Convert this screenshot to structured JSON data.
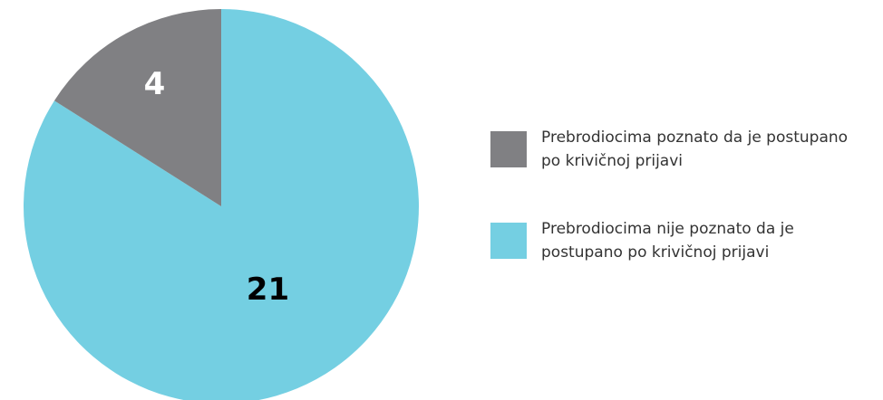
{
  "chart_data": {
    "type": "pie",
    "categories": [
      "Prebrodiocima nije poznato da je postupano po krivičnoj prijavi",
      "Prebrodiocima poznato da je postupano po krivičnoj prijavi"
    ],
    "values": [
      21,
      4
    ],
    "colors": [
      "#74cfe2",
      "#808083"
    ],
    "label_colors": [
      "#000000",
      "#ffffff"
    ]
  }
}
